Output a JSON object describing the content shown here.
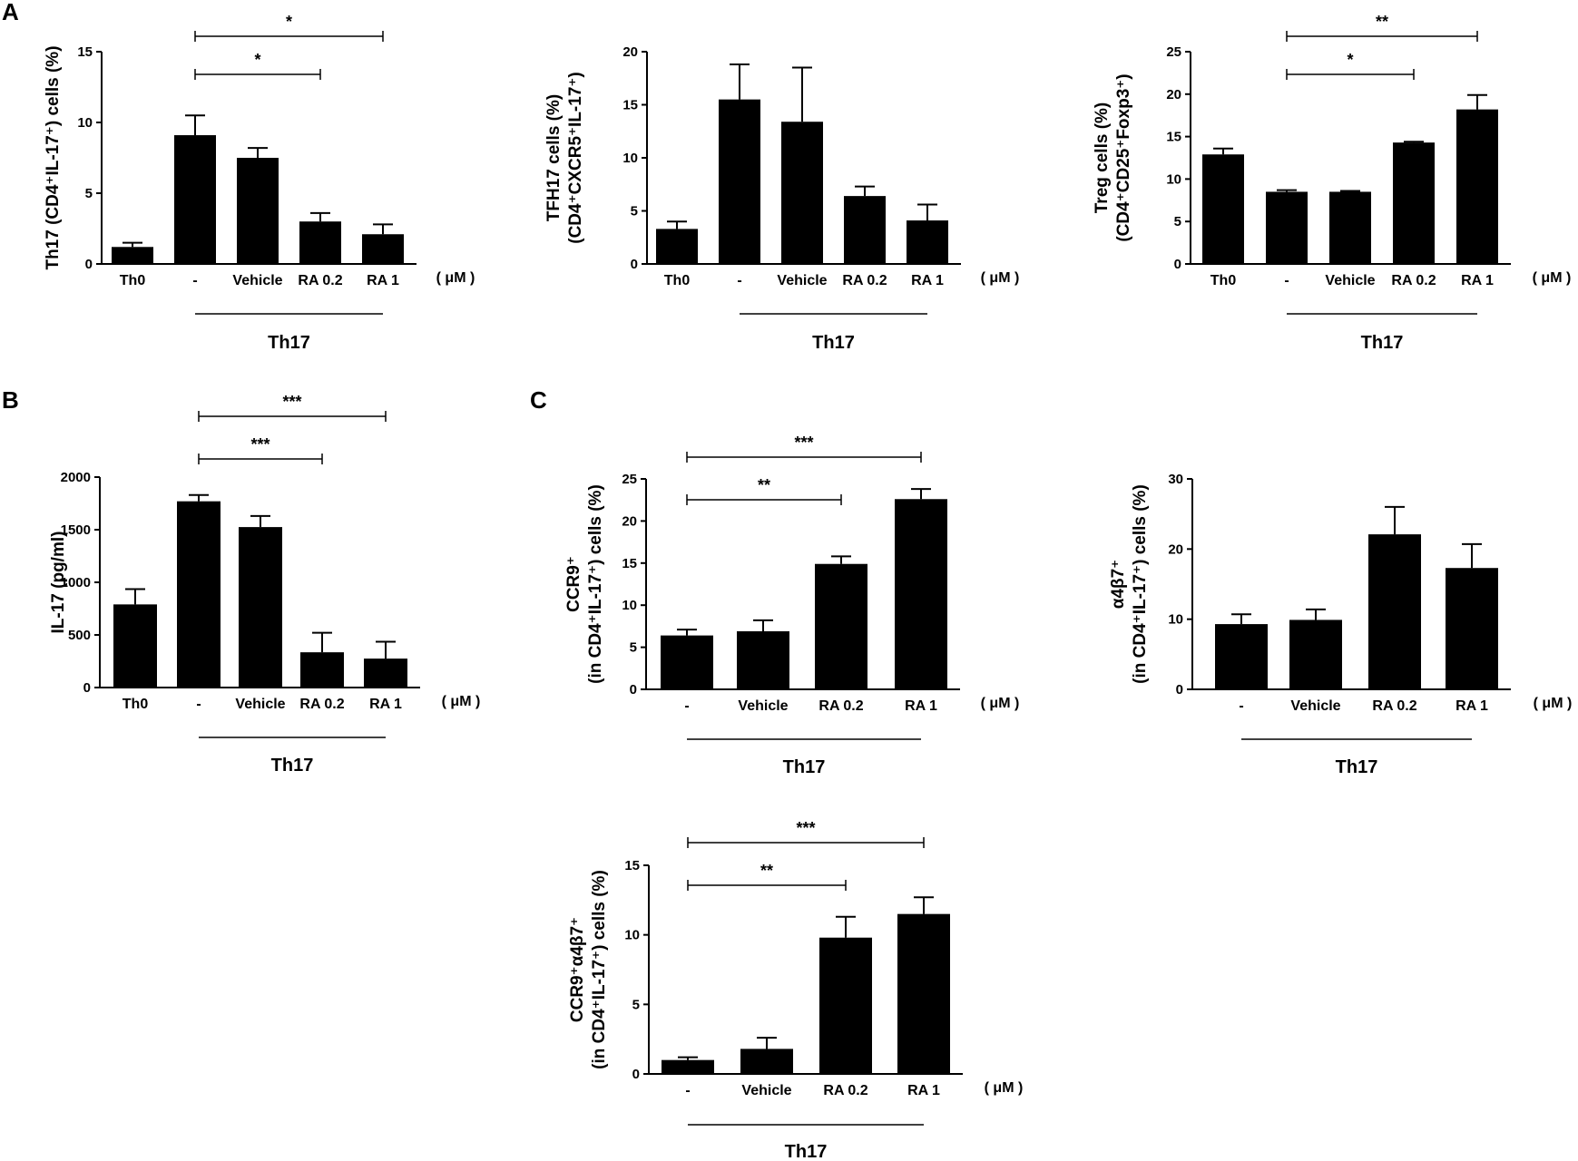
{
  "panel_labels": [
    "A",
    "B",
    "C"
  ],
  "chart_data": [
    {
      "type": "bar",
      "panel": "A",
      "categories": [
        "Th0",
        "-",
        "Vehicle",
        "RA 0.2",
        "RA 1"
      ],
      "values": [
        1.2,
        9.1,
        7.5,
        3.0,
        2.1
      ],
      "errors": [
        0.3,
        1.4,
        0.7,
        0.6,
        0.7
      ],
      "ylabel_lines": [
        "Th17 (CD4⁺IL-17⁺) cells (%)"
      ],
      "ylim": [
        0,
        15
      ],
      "yticks": [
        0,
        5,
        10,
        15
      ],
      "unit": "( μM )",
      "group_label": "Th17",
      "group_from": 1,
      "group_to": 4,
      "significance": [
        {
          "from": 1,
          "to": 3,
          "label": "*"
        },
        {
          "from": 1,
          "to": 4,
          "label": "*"
        }
      ]
    },
    {
      "type": "bar",
      "panel": "A",
      "categories": [
        "Th0",
        "-",
        "Vehicle",
        "RA 0.2",
        "RA 1"
      ],
      "values": [
        3.3,
        15.5,
        13.4,
        6.4,
        4.1
      ],
      "errors": [
        0.7,
        3.3,
        5.1,
        0.9,
        1.5
      ],
      "ylabel_lines": [
        "TFH17 cells (%)",
        "(CD4⁺CXCR5⁺IL-17⁺)"
      ],
      "ylim": [
        0,
        20
      ],
      "yticks": [
        0,
        5,
        10,
        15,
        20
      ],
      "unit": "( μM )",
      "group_label": "Th17",
      "group_from": 1,
      "group_to": 4,
      "significance": []
    },
    {
      "type": "bar",
      "panel": "A",
      "categories": [
        "Th0",
        "-",
        "Vehicle",
        "RA 0.2",
        "RA 1"
      ],
      "values": [
        12.9,
        8.5,
        8.5,
        14.3,
        18.2
      ],
      "errors": [
        0.7,
        0.2,
        0.1,
        0.1,
        1.7
      ],
      "ylabel_lines": [
        "Treg cells (%)",
        "(CD4⁺CD25⁺Foxp3⁺)"
      ],
      "ylim": [
        0,
        25
      ],
      "yticks": [
        0,
        5,
        10,
        15,
        20,
        25
      ],
      "unit": "( μM )",
      "group_label": "Th17",
      "group_from": 1,
      "group_to": 4,
      "significance": [
        {
          "from": 1,
          "to": 3,
          "label": "*"
        },
        {
          "from": 1,
          "to": 4,
          "label": "**"
        }
      ]
    },
    {
      "type": "bar",
      "panel": "B",
      "categories": [
        "Th0",
        "-",
        "Vehicle",
        "RA 0.2",
        "RA 1"
      ],
      "values": [
        790,
        1770,
        1525,
        335,
        275
      ],
      "errors": [
        145,
        60,
        105,
        185,
        160
      ],
      "ylabel_lines": [
        "IL-17 (pg/ml)"
      ],
      "ylim": [
        0,
        2000
      ],
      "yticks": [
        0,
        500,
        1000,
        1500,
        2000
      ],
      "unit": "( μM )",
      "group_label": "Th17",
      "group_from": 1,
      "group_to": 4,
      "significance": [
        {
          "from": 1,
          "to": 3,
          "label": "***"
        },
        {
          "from": 1,
          "to": 4,
          "label": "***"
        }
      ]
    },
    {
      "type": "bar",
      "panel": "C",
      "categories": [
        "-",
        "Vehicle",
        "RA 0.2",
        "RA 1"
      ],
      "values": [
        6.4,
        6.9,
        14.9,
        22.6
      ],
      "errors": [
        0.7,
        1.3,
        0.9,
        1.2
      ],
      "ylabel_lines": [
        "CCR9⁺",
        "(in CD4⁺IL-17⁺) cells (%)"
      ],
      "ylim": [
        0,
        25
      ],
      "yticks": [
        0,
        5,
        10,
        15,
        20,
        25
      ],
      "unit": "( μM )",
      "group_label": "Th17",
      "group_from": 0,
      "group_to": 3,
      "significance": [
        {
          "from": 0,
          "to": 2,
          "label": "**"
        },
        {
          "from": 0,
          "to": 3,
          "label": "***"
        }
      ]
    },
    {
      "type": "bar",
      "panel": "C",
      "categories": [
        "-",
        "Vehicle",
        "RA 0.2",
        "RA 1"
      ],
      "values": [
        9.3,
        9.9,
        22.1,
        17.3
      ],
      "errors": [
        1.4,
        1.5,
        3.9,
        3.4
      ],
      "ylabel_lines": [
        "α4β7⁺",
        "(in CD4⁺IL-17⁺) cells (%)"
      ],
      "ylim": [
        0,
        30
      ],
      "yticks": [
        0,
        10,
        20,
        30
      ],
      "unit": "( μM )",
      "group_label": "Th17",
      "group_from": 0,
      "group_to": 3,
      "significance": []
    },
    {
      "type": "bar",
      "panel": "C",
      "categories": [
        "-",
        "Vehicle",
        "RA 0.2",
        "RA 1"
      ],
      "values": [
        1.0,
        1.8,
        9.8,
        11.5
      ],
      "errors": [
        0.2,
        0.8,
        1.5,
        1.2
      ],
      "ylabel_lines": [
        "CCR9⁺α4β7⁺",
        "(in CD4⁺IL-17⁺) cells (%)"
      ],
      "ylim": [
        0,
        15
      ],
      "yticks": [
        0,
        5,
        10,
        15
      ],
      "unit": "( μM )",
      "group_label": "Th17",
      "group_from": 0,
      "group_to": 3,
      "significance": [
        {
          "from": 0,
          "to": 2,
          "label": "**"
        },
        {
          "from": 0,
          "to": 3,
          "label": "***"
        }
      ]
    }
  ]
}
